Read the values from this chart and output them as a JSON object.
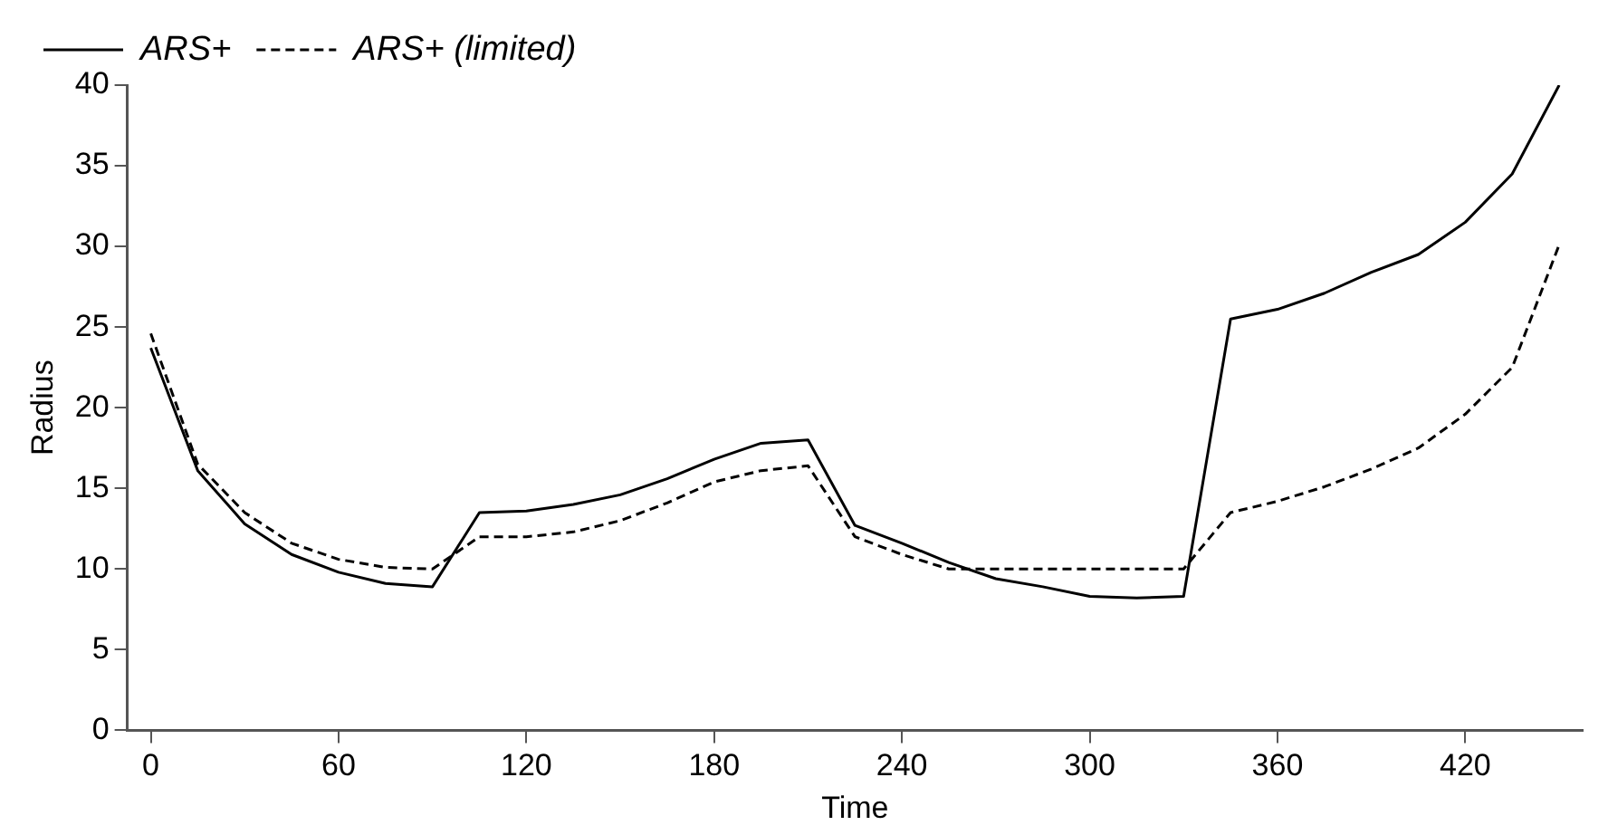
{
  "chart_data": {
    "type": "line",
    "xlabel": "Time",
    "ylabel": "Radius",
    "x": [
      0,
      15,
      30,
      45,
      60,
      75,
      90,
      105,
      120,
      135,
      150,
      165,
      180,
      195,
      210,
      225,
      240,
      255,
      270,
      285,
      300,
      315,
      330,
      345,
      360,
      375,
      390,
      405,
      420,
      435,
      450
    ],
    "series": [
      {
        "name": "ARS+",
        "color": "#000000",
        "line_style": "solid",
        "values": [
          23.7,
          16.1,
          12.8,
          10.9,
          9.8,
          9.1,
          8.9,
          13.5,
          13.6,
          14.0,
          14.6,
          15.6,
          16.8,
          17.8,
          18.0,
          12.7,
          11.6,
          10.4,
          9.4,
          8.9,
          8.3,
          8.2,
          8.3,
          25.5,
          26.1,
          27.1,
          28.4,
          29.5,
          31.5,
          34.5,
          40
        ]
      },
      {
        "name": "ARS+ (limited)",
        "color": "#000000",
        "line_style": "dashed",
        "values": [
          24.6,
          16.5,
          13.5,
          11.6,
          10.6,
          10.1,
          10.0,
          12.0,
          12.0,
          12.3,
          13.0,
          14.1,
          15.4,
          16.1,
          16.4,
          12.0,
          10.9,
          10.0,
          10.0,
          10.0,
          10.0,
          10.0,
          10.0,
          13.5,
          14.2,
          15.1,
          16.2,
          17.5,
          19.6,
          22.5,
          30.1
        ]
      }
    ],
    "xlim": [
      -7.5,
      457.5
    ],
    "xticks": [
      0,
      60,
      120,
      180,
      240,
      300,
      360,
      420
    ],
    "ylim": [
      0,
      40
    ],
    "yticks": [
      0,
      5,
      10,
      15,
      20,
      25,
      30,
      35,
      40
    ],
    "grid": false,
    "legend": "top left",
    "marker": "none"
  }
}
